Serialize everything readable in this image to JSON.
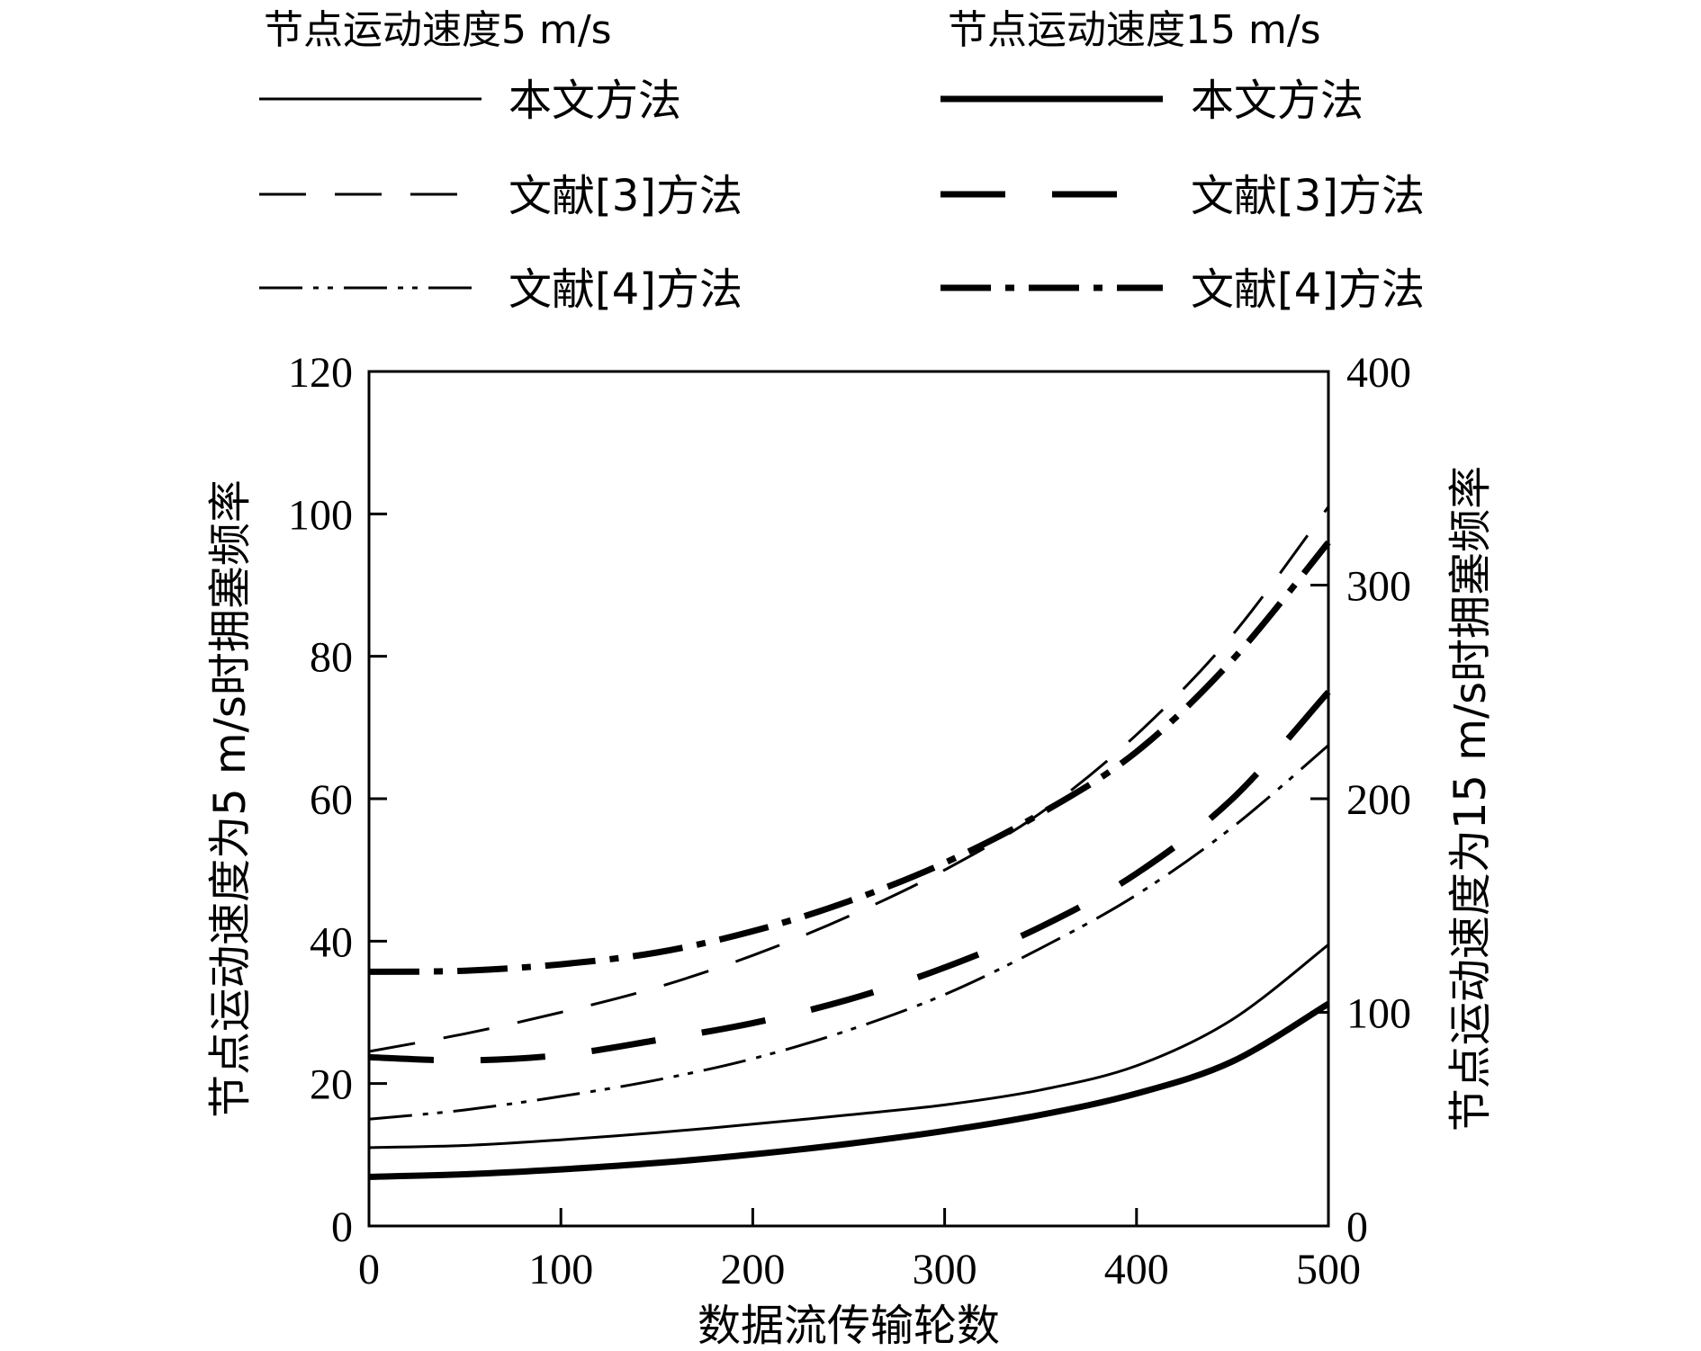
{
  "chart_data": {
    "type": "line",
    "x": [
      0,
      50,
      100,
      150,
      200,
      250,
      300,
      350,
      400,
      450,
      500
    ],
    "xlabel": "数据流传输轮数",
    "xlim": [
      0,
      500
    ],
    "xticks": [
      "0",
      "100",
      "200",
      "300",
      "400",
      "500"
    ],
    "left_axis": {
      "label": "节点运动速度为5 m/s时拥塞频率",
      "ylim": [
        0,
        120
      ],
      "ticks": [
        "0",
        "20",
        "40",
        "60",
        "80",
        "100",
        "120"
      ]
    },
    "right_axis": {
      "label": "节点运动速度为15 m/s时拥塞频率",
      "ylim": [
        0,
        400
      ],
      "ticks": [
        "0",
        "100",
        "200",
        "300",
        "400"
      ]
    },
    "legend": {
      "group_5": {
        "title": "节点运动速度5 m/s"
      },
      "group_15": {
        "title": "节点运动速度15 m/s"
      }
    },
    "series": [
      {
        "name": "本文方法",
        "group": "节点运动速度5 m/s",
        "axis": "left",
        "style": "solid",
        "weight": "thin",
        "values": [
          11,
          11.3,
          12.1,
          13.1,
          14.3,
          15.6,
          17.0,
          19.1,
          22.5,
          29.0,
          39.5
        ]
      },
      {
        "name": "文献[3]方法",
        "group": "节点运动速度5 m/s",
        "axis": "left",
        "style": "dash",
        "weight": "thin",
        "values": [
          24.5,
          27,
          30,
          33.5,
          38,
          43.5,
          50,
          58,
          69,
          83,
          101
        ]
      },
      {
        "name": "文献[4]方法",
        "group": "节点运动速度5 m/s",
        "axis": "left",
        "style": "dashdotdot",
        "weight": "thin",
        "values": [
          15,
          16.3,
          18.2,
          20.5,
          23.5,
          27.5,
          32.5,
          39,
          46.5,
          56,
          67.5
        ]
      },
      {
        "name": "本文方法",
        "group": "节点运动速度15 m/s",
        "axis": "right",
        "style": "solid",
        "weight": "thick",
        "values": [
          23,
          24.2,
          26.5,
          29.5,
          33.5,
          38.5,
          44.5,
          52,
          62,
          77,
          104
        ]
      },
      {
        "name": "文献[3]方法",
        "group": "节点运动速度15 m/s",
        "axis": "right",
        "style": "dash",
        "weight": "thick",
        "values": [
          79,
          77.5,
          80,
          87,
          95,
          106,
          121,
          140,
          165,
          200,
          250
        ]
      },
      {
        "name": "文献[4]方法",
        "group": "节点运动速度15 m/s",
        "axis": "right",
        "style": "dashdot",
        "weight": "thick",
        "values": [
          119,
          119.5,
          122.5,
          128,
          138,
          152,
          170,
          193,
          222,
          265,
          320
        ]
      }
    ]
  }
}
